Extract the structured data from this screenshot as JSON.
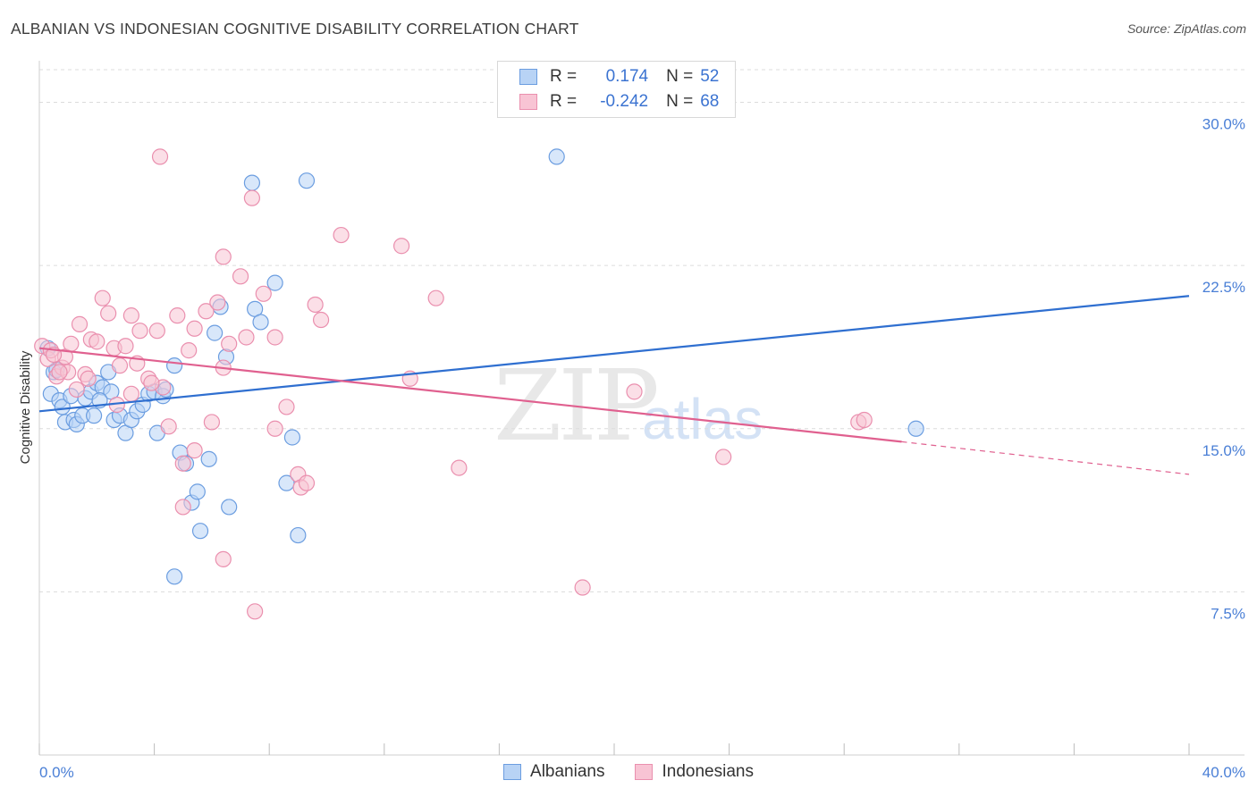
{
  "header": {
    "title": "ALBANIAN VS INDONESIAN COGNITIVE DISABILITY CORRELATION CHART",
    "source": "Source: ZipAtlas.com"
  },
  "watermark": {
    "zip": "ZIP",
    "atlas": "atlas"
  },
  "legend": {
    "rows": [
      {
        "r_label": "R =",
        "r_value": "0.174",
        "n_label": "N =",
        "n_value": "52"
      },
      {
        "r_label": "R =",
        "r_value": "-0.242",
        "n_label": "N =",
        "n_value": "68"
      }
    ]
  },
  "colors": {
    "albanians_fill": "#b8d3f5",
    "albanians_stroke": "#6b9de0",
    "albanians_line": "#2f6fd0",
    "indonesians_fill": "#f8c4d4",
    "indonesians_stroke": "#ea8fae",
    "indonesians_line": "#e0608f",
    "grid": "#dcdcdc",
    "tick_text": "#4a7fd6"
  },
  "chart_data": {
    "type": "scatter",
    "title": "ALBANIAN VS INDONESIAN COGNITIVE DISABILITY CORRELATION CHART",
    "xlabel": "",
    "ylabel": "Cognitive Disability",
    "xlim": [
      0,
      40
    ],
    "ylim": [
      0,
      31.5
    ],
    "x_tick_labels": [
      "0.0%",
      "40.0%"
    ],
    "y_ticks": [
      7.5,
      15.0,
      22.5,
      30.0
    ],
    "y_tick_labels": [
      "7.5%",
      "15.0%",
      "22.5%",
      "30.0%"
    ],
    "grid": true,
    "legend_placement": "top-center",
    "series": [
      {
        "name": "Albanians",
        "r": 0.174,
        "n": 52,
        "trend": {
          "x": [
            0,
            40
          ],
          "y": [
            15.8,
            21.1
          ]
        },
        "points": [
          [
            0.3,
            18.7
          ],
          [
            0.4,
            16.6
          ],
          [
            0.5,
            17.6
          ],
          [
            0.7,
            16.3
          ],
          [
            0.8,
            16.0
          ],
          [
            0.9,
            15.3
          ],
          [
            1.1,
            16.5
          ],
          [
            1.2,
            15.4
          ],
          [
            1.3,
            15.2
          ],
          [
            1.5,
            15.6
          ],
          [
            1.6,
            16.4
          ],
          [
            1.8,
            16.7
          ],
          [
            1.9,
            15.6
          ],
          [
            2.0,
            17.1
          ],
          [
            2.2,
            16.9
          ],
          [
            2.4,
            17.6
          ],
          [
            2.5,
            16.7
          ],
          [
            2.6,
            15.4
          ],
          [
            2.8,
            15.6
          ],
          [
            3.0,
            14.8
          ],
          [
            3.2,
            15.4
          ],
          [
            3.4,
            15.8
          ],
          [
            3.6,
            16.1
          ],
          [
            3.8,
            16.6
          ],
          [
            4.0,
            16.7
          ],
          [
            4.1,
            14.8
          ],
          [
            4.3,
            16.5
          ],
          [
            4.4,
            16.8
          ],
          [
            4.7,
            17.9
          ],
          [
            4.9,
            13.9
          ],
          [
            5.1,
            13.4
          ],
          [
            5.3,
            11.6
          ],
          [
            5.5,
            12.1
          ],
          [
            5.6,
            10.3
          ],
          [
            5.9,
            13.6
          ],
          [
            6.1,
            19.4
          ],
          [
            6.3,
            20.6
          ],
          [
            6.5,
            18.3
          ],
          [
            6.6,
            11.4
          ],
          [
            7.4,
            26.3
          ],
          [
            7.5,
            20.5
          ],
          [
            7.7,
            19.9
          ],
          [
            8.2,
            21.7
          ],
          [
            8.6,
            12.5
          ],
          [
            8.8,
            14.6
          ],
          [
            9.0,
            10.1
          ],
          [
            9.3,
            26.4
          ],
          [
            4.7,
            8.2
          ],
          [
            18.0,
            27.5
          ],
          [
            30.5,
            15.0
          ],
          [
            0.6,
            17.7
          ],
          [
            2.1,
            16.3
          ]
        ]
      },
      {
        "name": "Indonesians",
        "r": -0.242,
        "n": 68,
        "trend": {
          "x": [
            0,
            30.0
          ],
          "y": [
            18.7,
            14.4
          ]
        },
        "trend_dashed": {
          "x": [
            30.0,
            40
          ],
          "y": [
            14.4,
            12.9
          ]
        },
        "points": [
          [
            0.1,
            18.8
          ],
          [
            0.3,
            18.2
          ],
          [
            0.4,
            18.6
          ],
          [
            0.6,
            17.4
          ],
          [
            0.8,
            17.8
          ],
          [
            0.9,
            18.3
          ],
          [
            1.1,
            18.9
          ],
          [
            1.4,
            19.8
          ],
          [
            1.6,
            17.5
          ],
          [
            1.8,
            19.1
          ],
          [
            2.0,
            19.0
          ],
          [
            2.2,
            21.0
          ],
          [
            2.4,
            20.3
          ],
          [
            2.6,
            18.7
          ],
          [
            2.8,
            17.9
          ],
          [
            3.0,
            18.8
          ],
          [
            3.2,
            20.2
          ],
          [
            3.4,
            18.0
          ],
          [
            3.5,
            19.5
          ],
          [
            3.8,
            17.3
          ],
          [
            4.1,
            19.5
          ],
          [
            4.3,
            16.9
          ],
          [
            4.5,
            15.1
          ],
          [
            4.8,
            20.2
          ],
          [
            5.2,
            18.6
          ],
          [
            5.4,
            19.6
          ],
          [
            5.8,
            20.4
          ],
          [
            6.0,
            15.3
          ],
          [
            6.2,
            20.8
          ],
          [
            6.4,
            17.8
          ],
          [
            6.6,
            18.9
          ],
          [
            7.0,
            22.0
          ],
          [
            7.2,
            19.2
          ],
          [
            7.4,
            25.6
          ],
          [
            7.8,
            21.2
          ],
          [
            8.2,
            19.2
          ],
          [
            8.6,
            16.0
          ],
          [
            9.0,
            12.9
          ],
          [
            9.1,
            12.3
          ],
          [
            9.6,
            20.7
          ],
          [
            9.8,
            20.0
          ],
          [
            10.5,
            23.9
          ],
          [
            12.6,
            23.4
          ],
          [
            12.9,
            17.3
          ],
          [
            13.8,
            21.0
          ],
          [
            14.6,
            13.2
          ],
          [
            4.2,
            27.5
          ],
          [
            6.4,
            22.9
          ],
          [
            5.0,
            13.4
          ],
          [
            5.4,
            14.0
          ],
          [
            6.4,
            9.0
          ],
          [
            7.5,
            6.6
          ],
          [
            8.2,
            15.0
          ],
          [
            9.3,
            12.5
          ],
          [
            18.9,
            7.7
          ],
          [
            20.7,
            16.7
          ],
          [
            23.8,
            13.7
          ],
          [
            28.5,
            15.3
          ],
          [
            28.7,
            15.4
          ],
          [
            3.2,
            16.6
          ],
          [
            2.7,
            16.1
          ],
          [
            1.7,
            17.3
          ],
          [
            1.0,
            17.6
          ],
          [
            0.5,
            18.4
          ],
          [
            5.0,
            11.4
          ],
          [
            3.9,
            17.1
          ],
          [
            0.7,
            17.6
          ],
          [
            1.3,
            16.8
          ]
        ]
      }
    ]
  },
  "bottom_legend": {
    "items": [
      "Albanians",
      "Indonesians"
    ]
  }
}
